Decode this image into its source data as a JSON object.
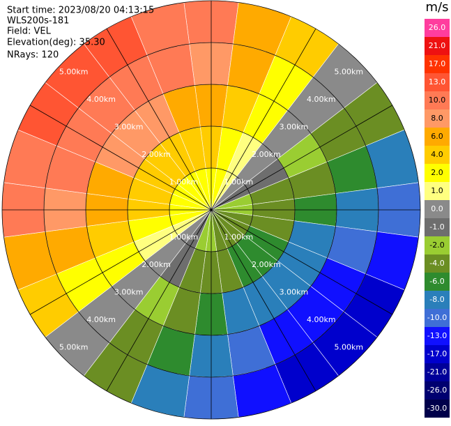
{
  "chart_data": {
    "type": "ppi",
    "header": [
      "Start time: 2023/08/20 04:13:15",
      "WLS200s-181",
      "Field: VEL",
      "Elevation(deg): 35.30",
      "NRays: 120"
    ],
    "range_edges": [
      0,
      1,
      2,
      3,
      4,
      5
    ],
    "ring_labels": [
      "1.00km",
      "2.00km",
      "3.00km",
      "4.00km",
      "5.00km"
    ],
    "azimuths": [
      0,
      15,
      30,
      45,
      60,
      75,
      90,
      105,
      120,
      135,
      150,
      165,
      180,
      195,
      210,
      225,
      240,
      255,
      270,
      285,
      300,
      315,
      330,
      345
    ],
    "values": [
      [
        2,
        4,
        6,
        8,
        10
      ],
      [
        2,
        3,
        4,
        6,
        7
      ],
      [
        1,
        1,
        2,
        3,
        4
      ],
      [
        0,
        0,
        0,
        0,
        0
      ],
      [
        -1,
        -1,
        -2,
        -3,
        -4
      ],
      [
        -2,
        -3,
        -4,
        -6,
        -7
      ],
      [
        -2,
        -4,
        -6,
        -8,
        -10
      ],
      [
        -3,
        -4,
        -7,
        -10,
        -12
      ],
      [
        -3,
        -5,
        -8,
        -11,
        -14
      ],
      [
        -3,
        -5,
        -8,
        -11,
        -14
      ],
      [
        -3,
        -5,
        -8,
        -11,
        -14
      ],
      [
        -3,
        -4,
        -7,
        -10,
        -12
      ],
      [
        -2,
        -4,
        -6,
        -8,
        -10
      ],
      [
        -2,
        -3,
        -4,
        -6,
        -7
      ],
      [
        -1,
        -1,
        -2,
        -3,
        -4
      ],
      [
        0,
        0,
        0,
        0,
        0
      ],
      [
        1,
        1,
        2,
        3,
        4
      ],
      [
        2,
        3,
        4,
        6,
        7
      ],
      [
        2,
        4,
        6,
        8,
        10
      ],
      [
        3,
        4,
        7,
        10,
        12
      ],
      [
        3,
        5,
        8,
        11,
        14
      ],
      [
        3,
        5,
        8,
        11,
        14
      ],
      [
        3,
        5,
        8,
        11,
        14
      ],
      [
        3,
        4,
        7,
        10,
        12
      ]
    ],
    "colorbar": {
      "title": "m/s",
      "ticks": [
        {
          "value": 26,
          "label": "26.0"
        },
        {
          "value": 21,
          "label": "21.0"
        },
        {
          "value": 17,
          "label": "17.0"
        },
        {
          "value": 13,
          "label": "13.0"
        },
        {
          "value": 10,
          "label": "10.0"
        },
        {
          "value": 8,
          "label": "8.0"
        },
        {
          "value": 6,
          "label": "6.0"
        },
        {
          "value": 4,
          "label": "4.0"
        },
        {
          "value": 2,
          "label": "2.0"
        },
        {
          "value": 1,
          "label": "1.0"
        },
        {
          "value": 0,
          "label": "0.0"
        },
        {
          "value": -1,
          "label": "-1.0"
        },
        {
          "value": -2,
          "label": "-2.0"
        },
        {
          "value": -4,
          "label": "-4.0"
        },
        {
          "value": -6,
          "label": "-6.0"
        },
        {
          "value": -8,
          "label": "-8.0"
        },
        {
          "value": -10,
          "label": "-10.0"
        },
        {
          "value": -13,
          "label": "-13.0"
        },
        {
          "value": -17,
          "label": "-17.0"
        },
        {
          "value": -21,
          "label": "-21.0"
        },
        {
          "value": -26,
          "label": "-26.0"
        },
        {
          "value": -30,
          "label": "-30.0"
        }
      ],
      "colors": [
        "#ff3d9e",
        "#ee1111",
        "#ff3300",
        "#ff5533",
        "#ff7a55",
        "#ff9966",
        "#ffaa00",
        "#ffcc00",
        "#ffff00",
        "#ffff80",
        "#8a8a8a",
        "#6e6e6e",
        "#9acd32",
        "#6b8e23",
        "#2e8b2e",
        "#2a7fba",
        "#3f6fd6",
        "#1010ff",
        "#0000cc",
        "#000099",
        "#000070",
        "#00004a"
      ]
    }
  }
}
